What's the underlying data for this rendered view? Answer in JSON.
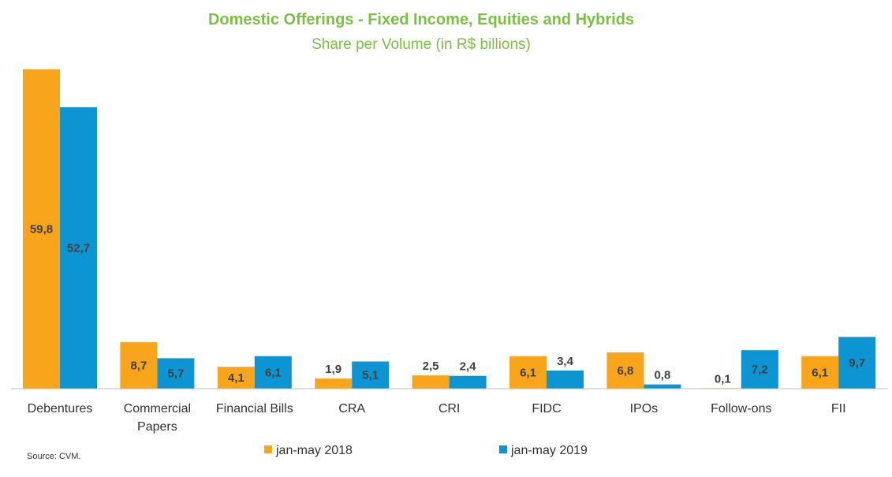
{
  "chart_data": {
    "type": "bar",
    "title": "Domestic Offerings - Fixed Income, Equities and Hybrids",
    "subtitle": "Share per Volume (in R$ billions)",
    "categories": [
      [
        "Debentures"
      ],
      [
        "Commercial",
        "Papers"
      ],
      [
        "Financial Bills"
      ],
      [
        "CRA"
      ],
      [
        "CRI"
      ],
      [
        "FIDC"
      ],
      [
        "IPOs"
      ],
      [
        "Follow-ons"
      ],
      [
        "FII"
      ]
    ],
    "series": [
      {
        "name": "jan-may 2018",
        "color": "#f9a51b",
        "values": [
          59.8,
          8.7,
          4.1,
          1.9,
          2.5,
          6.1,
          6.8,
          0.1,
          6.1
        ],
        "labels": [
          "59,8",
          "8,7",
          "4,1",
          "1,9",
          "2,5",
          "6,1",
          "6,8",
          "0,1",
          "6,1"
        ]
      },
      {
        "name": "jan-may 2019",
        "color": "#0d94d2",
        "values": [
          52.7,
          5.7,
          6.1,
          5.1,
          2.4,
          3.4,
          0.8,
          7.2,
          9.7
        ],
        "labels": [
          "52,7",
          "5,7",
          "6,1",
          "5,1",
          "2,4",
          "3,4",
          "0,8",
          "7,2",
          "9,7"
        ]
      }
    ],
    "ylim": [
      0,
      60
    ],
    "grid": false,
    "legend_position": "bottom",
    "source": "Source: CVM."
  }
}
